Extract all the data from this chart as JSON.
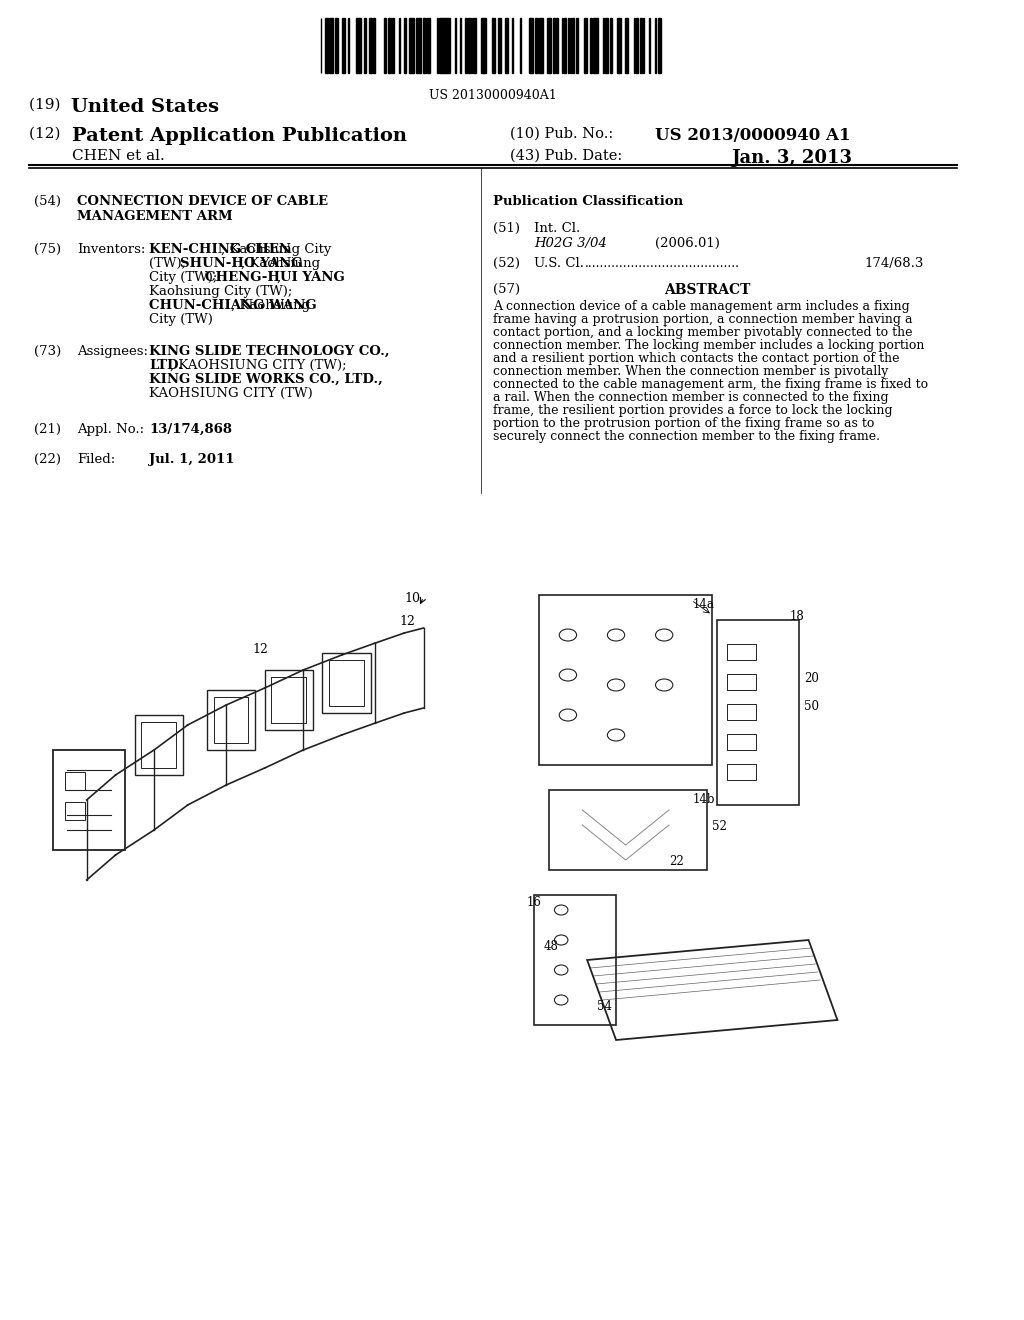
{
  "bg_color": "#ffffff",
  "barcode_text": "US 20130000940A1",
  "country": "(19) United States",
  "pub_type_label": "(12) Patent Application Publication",
  "pub_no_label": "(10) Pub. No.:",
  "pub_no_value": "US 2013/0000940 A1",
  "pub_date_label": "(43) Pub. Date:",
  "pub_date_value": "Jan. 3, 2013",
  "inventor_label": "CHEN et al.",
  "title_num": "(54)",
  "title_text": "CONNECTION DEVICE OF CABLE\nMANAGEMENT ARM",
  "inventors_num": "(75)",
  "inventors_label": "Inventors:",
  "inventors_text": "KEN-CHING CHEN, Kaohsiung City\n(TW); SHUN-HO YANG, Kaohsiung\nCity (TW); CHENG-HUI YANG,\nKaohsiung City (TW);\nCHUN-CHIANG WANG, Kaohsiung\nCity (TW)",
  "assignees_num": "(73)",
  "assignees_label": "Assignees:",
  "assignees_text": "KING SLIDE TECHNOLOGY CO.,\nLTD., KAOHSIUNG CITY (TW);\nKING SLIDE WORKS CO., LTD.,\nKAOHSIUNG CITY (TW)",
  "appl_num": "(21)",
  "appl_label": "Appl. No.:",
  "appl_value": "13/174,868",
  "filed_num": "(22)",
  "filed_label": "Filed:",
  "filed_date": "Jul. 1, 2011",
  "pub_class_title": "Publication Classification",
  "int_cl_num": "(51)",
  "int_cl_label": "Int. Cl.",
  "int_cl_code": "H02G 3/04",
  "int_cl_year": "(2006.01)",
  "us_cl_num": "(52)",
  "us_cl_label": "U.S. Cl.",
  "us_cl_value": "174/68.3",
  "abstract_num": "(57)",
  "abstract_title": "ABSTRACT",
  "abstract_text": "A connection device of a cable management arm includes a fixing frame having a protrusion portion, a connection member having a contact portion, and a locking member pivotably connected to the connection member. The locking member includes a locking portion and a resilient portion which contacts the contact portion of the connection member. When the connection member is pivotally connected to the cable management arm, the fixing frame is fixed to a rail. When the connection member is connected to the fixing frame, the resilient portion provides a force to lock the locking portion to the protrusion portion of the fixing frame so as to securely connect the connection member to the fixing frame."
}
